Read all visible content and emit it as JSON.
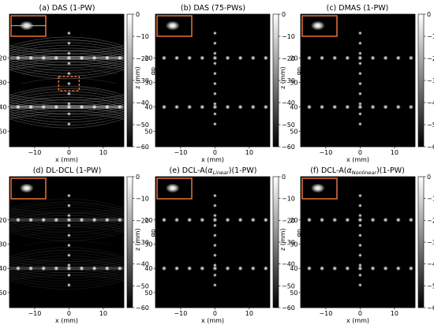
{
  "figure": {
    "colors": {
      "background": "#000000",
      "point": "#ffffff",
      "inset_border": "#e8743b",
      "roi_box": "#e8743b"
    },
    "colorbar": {
      "label": "dB",
      "ticks": [
        "0",
        "−10",
        "−20",
        "−30",
        "−40",
        "−50",
        "−60"
      ]
    },
    "axes": {
      "xlabel": "x (mm)",
      "ylabel": "z (mm)",
      "xticks": [
        "−10",
        "0",
        "10"
      ],
      "yticks": [
        "20",
        "30",
        "40",
        "50"
      ]
    },
    "panels": [
      {
        "id": "a",
        "title": "(a) DAS (1-PW)",
        "artifacts": "strong",
        "show_roi": true
      },
      {
        "id": "b",
        "title": "(b) DAS (75-PWs)",
        "artifacts": "none",
        "show_roi": false
      },
      {
        "id": "c",
        "title": "(c) DMAS (1-PW)",
        "artifacts": "none",
        "show_roi": false
      },
      {
        "id": "d",
        "title": "(d) DL-DCL (1-PW)",
        "artifacts": "weak",
        "show_roi": false
      },
      {
        "id": "e",
        "title_main": "(e) DCL-A(",
        "title_alpha": "α",
        "title_sub": "Linear",
        "title_tail": ")(1-PW)",
        "artifacts": "faint",
        "show_roi": false
      },
      {
        "id": "f",
        "title_main": "(f) DCL-A(",
        "title_alpha": "α",
        "title_sub": "Nonlinear",
        "title_tail": ")(1-PW)",
        "artifacts": "none",
        "show_roi": false
      }
    ]
  }
}
